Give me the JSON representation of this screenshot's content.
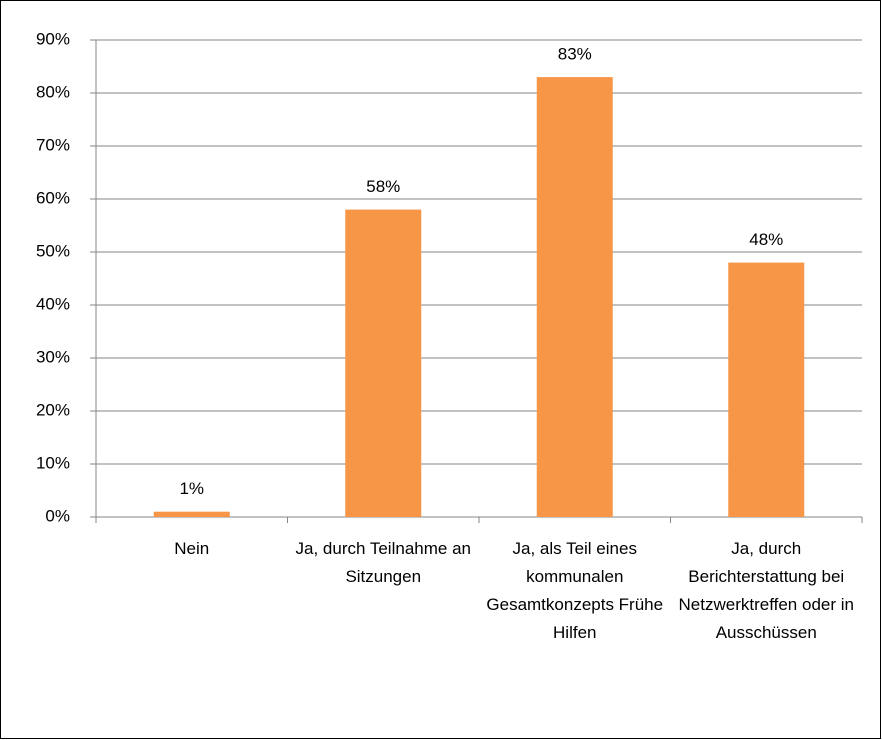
{
  "chart_data": {
    "type": "bar",
    "categories": [
      "Nein",
      "Ja, durch Teilnahme an Sitzungen",
      "Ja, als Teil eines kommunalen Gesamtkonzepts Frühe Hilfen",
      "Ja, durch Berichterstattung bei Netzwerktreffen oder in Ausschüssen"
    ],
    "values": [
      1,
      58,
      83,
      48
    ],
    "value_labels": [
      "1%",
      "58%",
      "83%",
      "48%"
    ],
    "color": "#f79646",
    "ylim": [
      0,
      90
    ],
    "yticks": [
      {
        "value": 0,
        "label": "0%"
      },
      {
        "value": 10,
        "label": "10%"
      },
      {
        "value": 20,
        "label": "20%"
      },
      {
        "value": 30,
        "label": "30%"
      },
      {
        "value": 40,
        "label": "40%"
      },
      {
        "value": 50,
        "label": "50%"
      },
      {
        "value": 60,
        "label": "60%"
      },
      {
        "value": 70,
        "label": "70%"
      },
      {
        "value": 80,
        "label": "80%"
      },
      {
        "value": 90,
        "label": "90%"
      }
    ],
    "grid": true
  }
}
